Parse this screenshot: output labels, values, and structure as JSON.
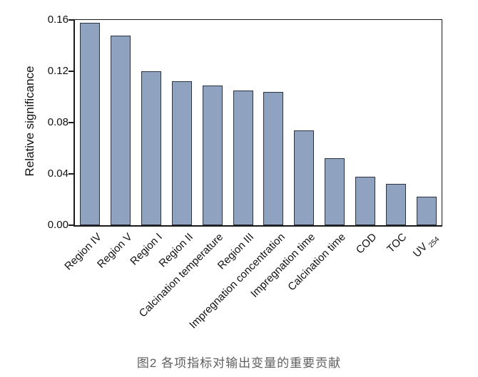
{
  "chart_data": {
    "type": "bar",
    "title": "",
    "xlabel": "",
    "ylabel": "Relative significance",
    "categories": [
      "Region IV",
      "Region V",
      "Region I",
      "Region II",
      "Calcination temperature",
      "Region III",
      "Impregnation concentration",
      "Impregnation time",
      "Calcination time",
      "COD",
      "TOC",
      {
        "label": "UV",
        "sub": "254"
      }
    ],
    "values": [
      0.158,
      0.148,
      0.12,
      0.112,
      0.109,
      0.105,
      0.104,
      0.074,
      0.052,
      0.038,
      0.032,
      0.022
    ],
    "ylim": [
      0,
      0.16
    ],
    "yticks": [
      0.0,
      0.04,
      0.08,
      0.12,
      0.16
    ],
    "ytick_labels": [
      "0.00",
      "0.04",
      "0.08",
      "0.12",
      "0.16"
    ],
    "grid": false,
    "legend": null,
    "bar_fill_color": "#8fa3c0",
    "bar_border_color": "#2b3240",
    "axis_color": "#1a1a1a"
  },
  "caption": "图2  各项指标对输出变量的重要贡献"
}
